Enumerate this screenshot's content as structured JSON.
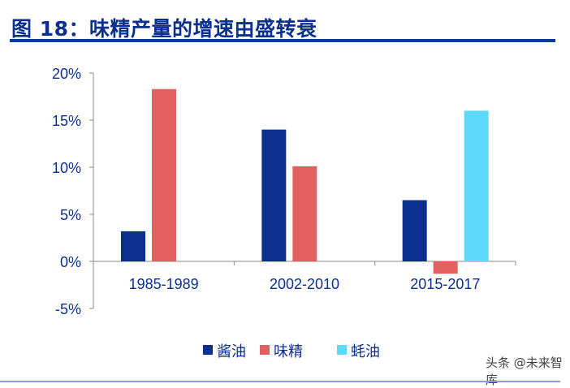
{
  "title": "图 18：味精产量的增速由盛转衰",
  "watermark": "头条 @未来智库",
  "chart_data": {
    "type": "bar",
    "title": "图 18：味精产量的增速由盛转衰",
    "categories": [
      "1985-1989",
      "2002-2010",
      "2015-2017"
    ],
    "series": [
      {
        "name": "酱油",
        "color": "#0a2f8f",
        "values": [
          3.2,
          14.0,
          6.5
        ]
      },
      {
        "name": "味精",
        "color": "#e36060",
        "values": [
          18.3,
          10.1,
          -1.3
        ]
      },
      {
        "name": "蚝油",
        "color": "#5ed8fb",
        "values": [
          null,
          null,
          16.0
        ]
      }
    ],
    "yticks": [
      "20%",
      "15%",
      "10%",
      "5%",
      "0%",
      "-5%"
    ],
    "ytick_values": [
      20,
      15,
      10,
      5,
      0,
      -5
    ],
    "ylim": [
      -5,
      20
    ],
    "xlabel": "",
    "ylabel": "",
    "legend_position": "bottom",
    "grid": false
  }
}
